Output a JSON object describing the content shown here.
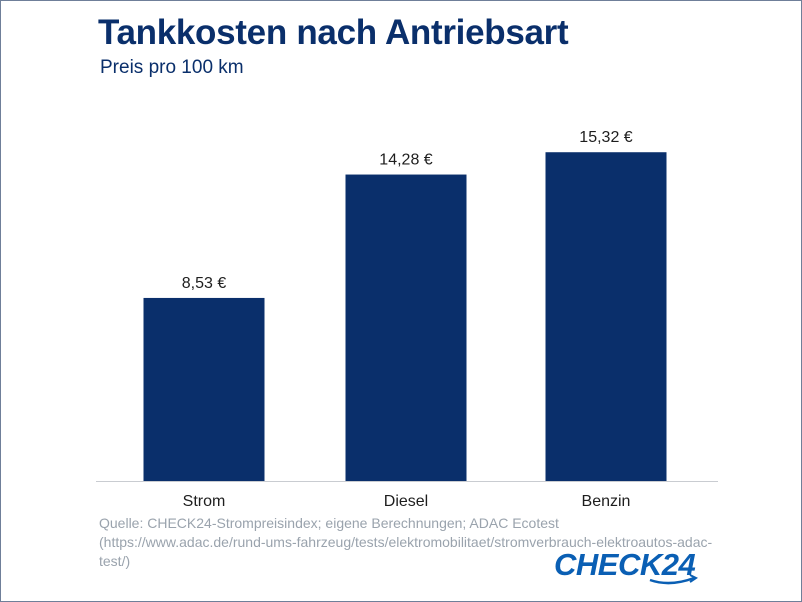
{
  "chart_data": {
    "type": "bar",
    "title": "Tankkosten nach Antriebsart",
    "subtitle": "Preis pro 100 km",
    "categories": [
      "Strom",
      "Diesel",
      "Benzin"
    ],
    "values": [
      8.53,
      14.28,
      15.32
    ],
    "value_labels": [
      "8,53 €",
      "14,28 €",
      "15,32 €"
    ],
    "unit": "€",
    "xlabel": "",
    "ylabel": "",
    "ylim": [
      0,
      17.8
    ],
    "grid": false,
    "bar_color": "#0a2f6b"
  },
  "source_text": "Quelle: CHECK24-Strompreisindex; eigene Berechnungen; ADAC Ecotest (https://www.adac.de/rund-ums-fahrzeug/tests/elektromobilitaet/stromverbrauch-elektroautos-adac-test/)",
  "logo": {
    "text": "CHECK24",
    "color": "#0a5fb4"
  }
}
